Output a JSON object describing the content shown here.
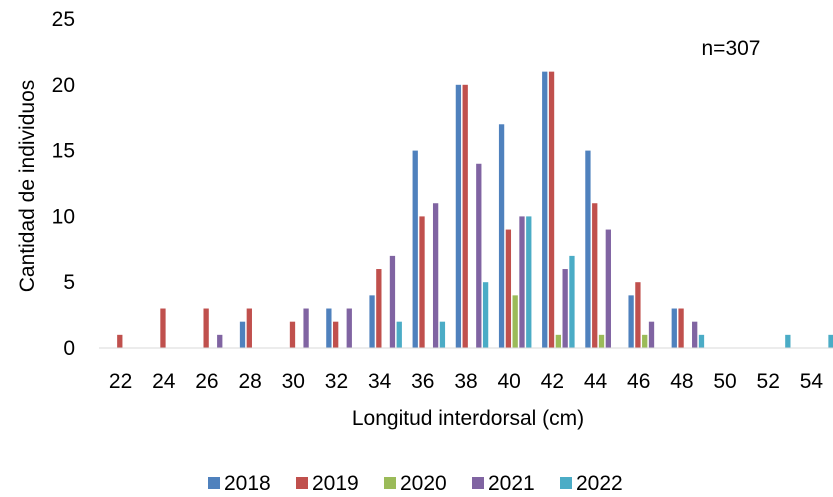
{
  "chart_data": {
    "type": "bar",
    "title": "",
    "xlabel": "Longitud interdorsal (cm)",
    "ylabel": "Cantidad de individuos",
    "annotation": "n=307",
    "ylim": [
      0,
      25
    ],
    "yticks": [
      "0",
      "5",
      "10",
      "15",
      "20",
      "25"
    ],
    "grid": false,
    "legend_position": "bottom",
    "categories": [
      "22",
      "24",
      "26",
      "28",
      "30",
      "32",
      "34",
      "36",
      "38",
      "40",
      "42",
      "44",
      "46",
      "48",
      "50",
      "52",
      "54"
    ],
    "series": [
      {
        "name": "2018",
        "color": "#4F81BD",
        "values": [
          0,
          0,
          0,
          2,
          0,
          3,
          4,
          15,
          20,
          17,
          21,
          15,
          4,
          3,
          0,
          0,
          0
        ]
      },
      {
        "name": "2019",
        "color": "#C0504D",
        "values": [
          1,
          3,
          3,
          3,
          2,
          2,
          6,
          10,
          20,
          9,
          21,
          11,
          5,
          3,
          0,
          0,
          0
        ]
      },
      {
        "name": "2020",
        "color": "#9BBB59",
        "values": [
          0,
          0,
          0,
          0,
          0,
          0,
          0,
          0,
          0,
          4,
          1,
          1,
          1,
          0,
          0,
          0,
          0
        ]
      },
      {
        "name": "2021",
        "color": "#8064A2",
        "values": [
          0,
          0,
          1,
          0,
          3,
          3,
          7,
          11,
          14,
          10,
          6,
          9,
          2,
          2,
          0,
          0,
          0
        ]
      },
      {
        "name": "2022",
        "color": "#4BACC6",
        "values": [
          0,
          0,
          0,
          0,
          0,
          0,
          2,
          2,
          5,
          10,
          7,
          0,
          0,
          1,
          0,
          1,
          1
        ]
      }
    ]
  }
}
